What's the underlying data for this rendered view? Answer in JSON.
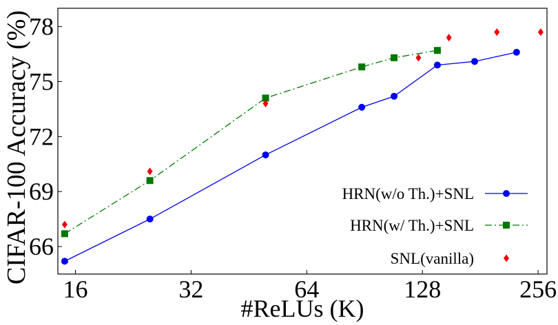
{
  "chart_data": {
    "type": "line",
    "title": "",
    "xlabel": "#ReLUs (K)",
    "ylabel": "CIFAR-100 Accuracy (%)",
    "x_scale": "log2",
    "xlim": [
      14.4,
      270
    ],
    "ylim": [
      64.5,
      79.0
    ],
    "x_ticks": [
      16,
      32,
      64,
      128,
      256
    ],
    "y_ticks": [
      66,
      69,
      72,
      75,
      78
    ],
    "grid": false,
    "legend": "bottom-right",
    "series": [
      {
        "name": "HRN(w/o Th.)+SNL",
        "color": "#0000ee",
        "marker": "circle",
        "line": "solid",
        "x": [
          15,
          25,
          50,
          89,
          108,
          140,
          175,
          225
        ],
        "y": [
          65.2,
          67.5,
          71.0,
          73.6,
          74.2,
          75.9,
          76.1,
          76.6
        ]
      },
      {
        "name": "HRN(w/ Th.)+SNL",
        "color": "#007700",
        "marker": "square",
        "line": "dashdot",
        "x": [
          15,
          25,
          50,
          89,
          108,
          140
        ],
        "y": [
          66.7,
          69.6,
          74.1,
          75.8,
          76.3,
          76.7
        ]
      },
      {
        "name": "SNL(vanilla)",
        "color": "#ee0000",
        "marker": "diamond",
        "line": "none",
        "x": [
          15,
          25,
          50,
          125,
          150,
          200,
          260
        ],
        "y": [
          67.2,
          70.1,
          73.8,
          76.3,
          77.4,
          77.7,
          77.7
        ]
      }
    ]
  }
}
